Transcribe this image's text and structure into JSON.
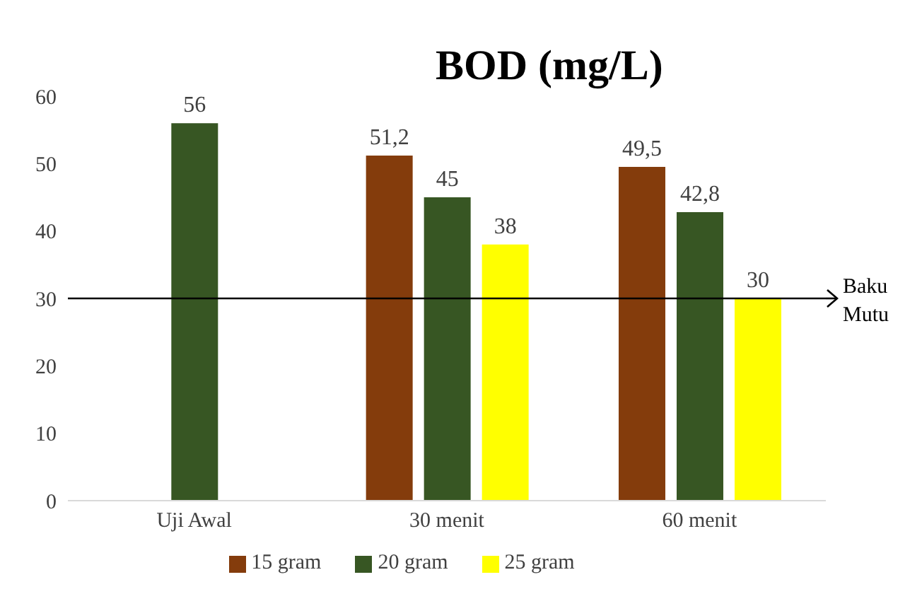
{
  "chart_data": {
    "type": "bar",
    "title": "BOD (mg/L)",
    "categories": [
      "Uji Awal",
      "30 menit",
      "60 menit"
    ],
    "series": [
      {
        "name": "15 gram",
        "color": "#843c0c",
        "values": [
          null,
          51.2,
          49.5
        ],
        "value_labels": [
          null,
          "51,2",
          "49,5"
        ]
      },
      {
        "name": "20 gram",
        "color": "#375623",
        "values": [
          56,
          45,
          42.8
        ],
        "value_labels": [
          "56",
          "45",
          "42,8"
        ]
      },
      {
        "name": "25 gram",
        "color": "#ffff00",
        "values": [
          null,
          38,
          30
        ],
        "value_labels": [
          null,
          "38",
          "30"
        ]
      }
    ],
    "ylim": [
      0,
      60
    ],
    "yticks": [
      0,
      10,
      20,
      30,
      40,
      50,
      60
    ],
    "grid": false,
    "legend": "bottom",
    "ref_lines": [
      {
        "axis": "y",
        "value": 30,
        "label": "Baku Mutu",
        "color": "#000000"
      }
    ]
  }
}
